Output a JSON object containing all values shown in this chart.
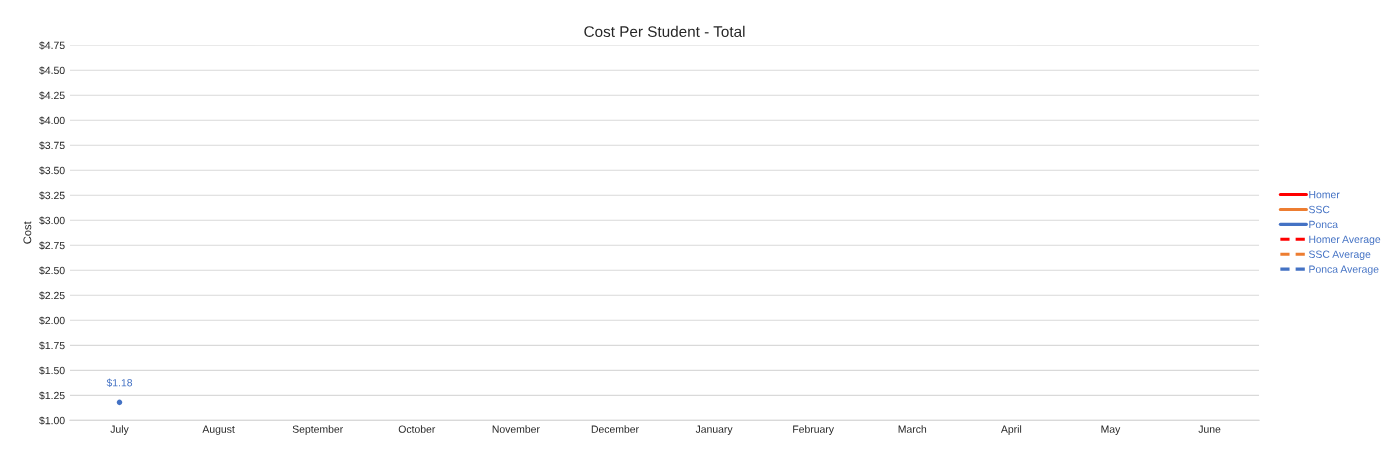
{
  "chart_data": {
    "type": "line",
    "title": "Cost Per Student - Total",
    "ylabel": "Cost",
    "categories": [
      "July",
      "August",
      "September",
      "October",
      "November",
      "December",
      "January",
      "February",
      "March",
      "April",
      "May",
      "June"
    ],
    "series": [
      {
        "name": "Homer",
        "color": "#ff0000",
        "line_style": "solid",
        "values": [
          null,
          null,
          null,
          null,
          null,
          null,
          null,
          null,
          null,
          null,
          null,
          null
        ]
      },
      {
        "name": "SSC",
        "color": "#ed7d31",
        "line_style": "solid",
        "values": [
          null,
          null,
          null,
          null,
          null,
          null,
          null,
          null,
          null,
          null,
          null,
          null
        ]
      },
      {
        "name": "Ponca",
        "color": "#4472c4",
        "line_style": "solid",
        "values": [
          1.18,
          null,
          null,
          null,
          null,
          null,
          null,
          null,
          null,
          null,
          null,
          null
        ],
        "value_labels": [
          "$1.18",
          null,
          null,
          null,
          null,
          null,
          null,
          null,
          null,
          null,
          null,
          null
        ]
      },
      {
        "name": "Homer Average",
        "color": "#ff0000",
        "line_style": "dashed",
        "values": [
          null,
          null,
          null,
          null,
          null,
          null,
          null,
          null,
          null,
          null,
          null,
          null
        ]
      },
      {
        "name": "SSC Average",
        "color": "#ed7d31",
        "line_style": "dashed",
        "values": [
          null,
          null,
          null,
          null,
          null,
          null,
          null,
          null,
          null,
          null,
          null,
          null
        ]
      },
      {
        "name": "Ponca Average",
        "color": "#4472c4",
        "line_style": "dashed",
        "values": [
          null,
          null,
          null,
          null,
          null,
          null,
          null,
          null,
          null,
          null,
          null,
          null
        ]
      }
    ],
    "ylim": [
      1.0,
      4.75
    ],
    "yticks": [
      {
        "value": 1.0,
        "label": "$1.00"
      },
      {
        "value": 1.25,
        "label": "$1.25"
      },
      {
        "value": 1.5,
        "label": "$1.50"
      },
      {
        "value": 1.75,
        "label": "$1.75"
      },
      {
        "value": 2.0,
        "label": "$2.00"
      },
      {
        "value": 2.25,
        "label": "$2.25"
      },
      {
        "value": 2.5,
        "label": "$2.50"
      },
      {
        "value": 2.75,
        "label": "$2.75"
      },
      {
        "value": 3.0,
        "label": "$3.00"
      },
      {
        "value": 3.25,
        "label": "$3.25"
      },
      {
        "value": 3.5,
        "label": "$3.50"
      },
      {
        "value": 3.75,
        "label": "$3.75"
      },
      {
        "value": 4.0,
        "label": "$4.00"
      },
      {
        "value": 4.25,
        "label": "$4.25"
      },
      {
        "value": 4.5,
        "label": "$4.50"
      },
      {
        "value": 4.75,
        "label": "$4.75"
      }
    ],
    "grid": "y",
    "legend": "right",
    "marker": "none"
  }
}
